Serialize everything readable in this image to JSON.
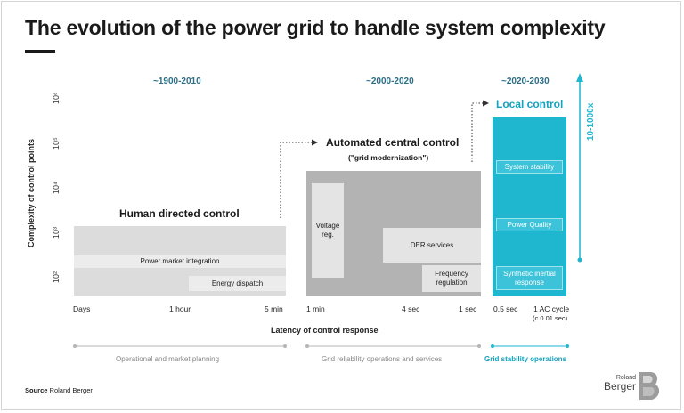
{
  "title": "The evolution of the power grid to handle system complexity",
  "eras": [
    "~1900-2010",
    "~2000-2020",
    "~2020-2030"
  ],
  "y_axis": {
    "title": "Complexity of control points",
    "ticks": [
      "10²",
      "10³",
      "10⁴",
      "10⁵",
      "10⁶"
    ]
  },
  "stages": {
    "human": "Human directed control",
    "automated": "Automated central control",
    "automated_sub": "(\"grid modernization\")",
    "local": "Local control"
  },
  "human_bands": [
    "Power market integration",
    "Energy dispatch"
  ],
  "automated_boxes": [
    "Voltage reg.",
    "DER services",
    "Frequency regulation"
  ],
  "local_boxes": [
    "System stability",
    "Power Quality",
    "Synthetic inertial response"
  ],
  "scale_label": "10-1000x",
  "x_axis": {
    "title": "Latency of control response",
    "ticks": [
      "Days",
      "1 hour",
      "5 min",
      "1 min",
      "4 sec",
      "1 sec",
      "0.5 sec",
      "1 AC cycle",
      "(c.0.01 sec)"
    ]
  },
  "categories": [
    "Operational and market planning",
    "Grid reliability operations and services",
    "Grid stability operations"
  ],
  "source_label": "Source",
  "source_value": "Roland Berger",
  "logo": {
    "line1": "Roland",
    "line2": "Berger"
  },
  "colors": {
    "accent_teal": "#1fb6d0",
    "era_blue": "#2b6e86",
    "grey_light": "#d9d9d9",
    "grey_dark": "#b3b3b3"
  }
}
